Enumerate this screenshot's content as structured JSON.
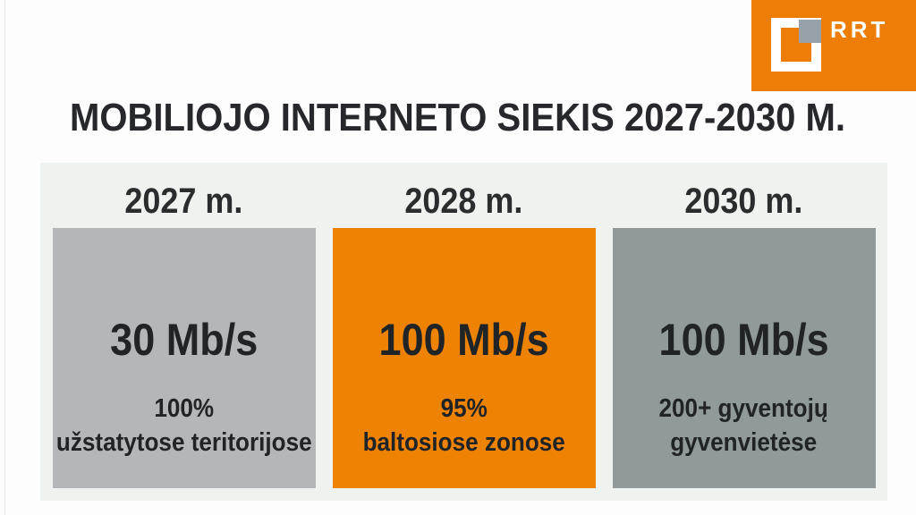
{
  "logo": {
    "brand": "RRT",
    "bg_color": "#ed7d05",
    "accent_gray": "#97a1a8"
  },
  "title": "MOBILIOJO INTERNETO SIEKIS 2027-2030 M.",
  "panel": {
    "bg_color": "#eef3f0",
    "columns": [
      {
        "year": "2027 m.",
        "value": "30 Mb/s",
        "detail": [
          "100%",
          "užstatytose teritorijose"
        ],
        "box_color": "#b4b6b9"
      },
      {
        "year": "2028 m.",
        "value": "100 Mb/s",
        "detail": [
          "95%",
          "baltosiose zonose"
        ],
        "box_color": "#ee8303"
      },
      {
        "year": "2030 m.",
        "value": "100 Mb/s",
        "detail": [
          "200+ gyventojų",
          "gyvenvietėse"
        ],
        "box_color": "#8f9a99"
      }
    ]
  },
  "colors": {
    "text_dark": "#212427",
    "title_dark": "#26282b",
    "page_bg": "#fdfdfd"
  }
}
